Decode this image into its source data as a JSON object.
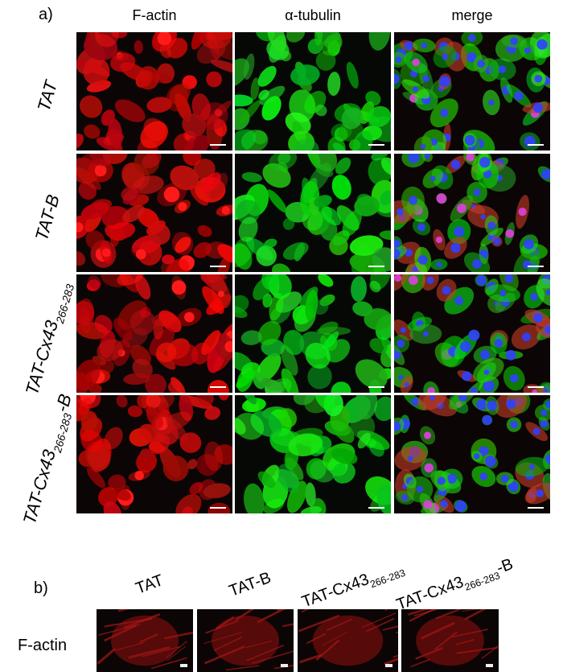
{
  "panel_a": {
    "label": "a)",
    "columns": [
      "F-actin",
      "α-tubulin",
      "merge"
    ],
    "rows": [
      {
        "name": "TAT"
      },
      {
        "name": "TAT-B"
      },
      {
        "name": "TAT-Cx43",
        "sub": "266-283"
      },
      {
        "name": "TAT-Cx43",
        "sub": "266-283",
        "suffix": "-B"
      }
    ]
  },
  "panel_b": {
    "label": "b)",
    "row_label": "F-actin",
    "columns": [
      {
        "name": "TAT"
      },
      {
        "name": "TAT-B"
      },
      {
        "name": "TAT-Cx43",
        "sub": "266-283"
      },
      {
        "name": "TAT-Cx43",
        "sub": "266-283",
        "suffix": "-B"
      }
    ]
  }
}
